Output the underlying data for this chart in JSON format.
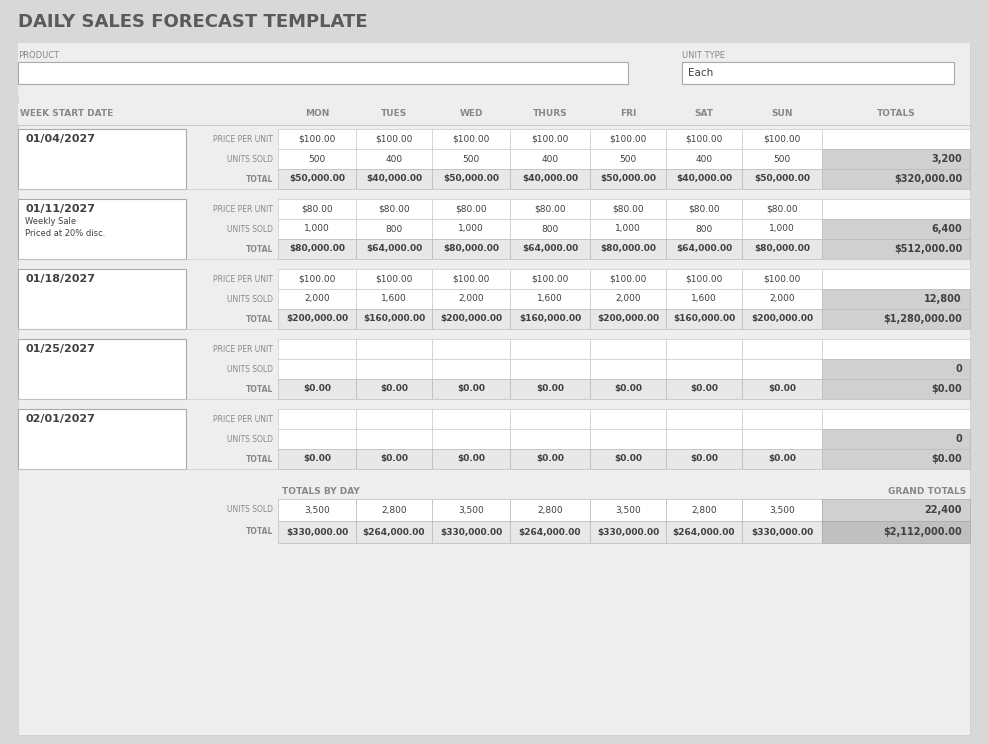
{
  "title": "DAILY SALES FORECAST TEMPLATE",
  "title_color": "#5a5a5a",
  "bg_outer": "#d8d8d8",
  "bg_table": "#eeeeee",
  "white": "#ffffff",
  "light_gray": "#d0d0d0",
  "cell_gray": "#e8e8e8",
  "dark_text": "#404040",
  "header_color": "#888888",
  "border_color": "#bbbbbb",
  "product_label": "PRODUCT",
  "unit_type_label": "UNIT TYPE",
  "unit_type_value": "Each",
  "weeks": [
    {
      "date": "01/04/2027",
      "notes": [
        "",
        "",
        ""
      ],
      "price_per_unit": [
        "$100.00",
        "$100.00",
        "$100.00",
        "$100.00",
        "$100.00",
        "$100.00",
        "$100.00"
      ],
      "units_sold": [
        "500",
        "400",
        "500",
        "400",
        "500",
        "400",
        "500"
      ],
      "units_sold_total": "3,200",
      "total": [
        "$50,000.00",
        "$40,000.00",
        "$50,000.00",
        "$40,000.00",
        "$50,000.00",
        "$40,000.00",
        "$50,000.00"
      ],
      "total_sum": "$320,000.00"
    },
    {
      "date": "01/11/2027",
      "notes": [
        "Weekly Sale",
        "Priced at 20% disc.",
        ""
      ],
      "price_per_unit": [
        "$80.00",
        "$80.00",
        "$80.00",
        "$80.00",
        "$80.00",
        "$80.00",
        "$80.00"
      ],
      "units_sold": [
        "1,000",
        "800",
        "1,000",
        "800",
        "1,000",
        "800",
        "1,000"
      ],
      "units_sold_total": "6,400",
      "total": [
        "$80,000.00",
        "$64,000.00",
        "$80,000.00",
        "$64,000.00",
        "$80,000.00",
        "$64,000.00",
        "$80,000.00"
      ],
      "total_sum": "$512,000.00"
    },
    {
      "date": "01/18/2027",
      "notes": [
        "",
        "",
        ""
      ],
      "price_per_unit": [
        "$100.00",
        "$100.00",
        "$100.00",
        "$100.00",
        "$100.00",
        "$100.00",
        "$100.00"
      ],
      "units_sold": [
        "2,000",
        "1,600",
        "2,000",
        "1,600",
        "2,000",
        "1,600",
        "2,000"
      ],
      "units_sold_total": "12,800",
      "total": [
        "$200,000.00",
        "$160,000.00",
        "$200,000.00",
        "$160,000.00",
        "$200,000.00",
        "$160,000.00",
        "$200,000.00"
      ],
      "total_sum": "$1,280,000.00"
    },
    {
      "date": "01/25/2027",
      "notes": [
        "",
        "",
        ""
      ],
      "price_per_unit": [
        "",
        "",
        "",
        "",
        "",
        "",
        ""
      ],
      "units_sold": [
        "",
        "",
        "",
        "",
        "",
        "",
        ""
      ],
      "units_sold_total": "0",
      "total": [
        "$0.00",
        "$0.00",
        "$0.00",
        "$0.00",
        "$0.00",
        "$0.00",
        "$0.00"
      ],
      "total_sum": "$0.00"
    },
    {
      "date": "02/01/2027",
      "notes": [
        "",
        "",
        ""
      ],
      "price_per_unit": [
        "",
        "",
        "",
        "",
        "",
        "",
        ""
      ],
      "units_sold": [
        "",
        "",
        "",
        "",
        "",
        "",
        ""
      ],
      "units_sold_total": "0",
      "total": [
        "$0.00",
        "$0.00",
        "$0.00",
        "$0.00",
        "$0.00",
        "$0.00",
        "$0.00"
      ],
      "total_sum": "$0.00"
    }
  ],
  "col_day_labels": [
    "MON",
    "TUES",
    "WED",
    "THURS",
    "FRI",
    "SAT",
    "SUN"
  ],
  "totals_by_day_label": "TOTALS BY DAY",
  "grand_totals_label": "GRAND TOTALS",
  "totals_units_sold": [
    "3,500",
    "2,800",
    "3,500",
    "2,800",
    "3,500",
    "2,800",
    "3,500"
  ],
  "totals_units_sold_grand": "22,400",
  "totals_total": [
    "$330,000.00",
    "$264,000.00",
    "$330,000.00",
    "$264,000.00",
    "$330,000.00",
    "$264,000.00",
    "$330,000.00"
  ],
  "totals_total_grand": "$2,112,000.00"
}
